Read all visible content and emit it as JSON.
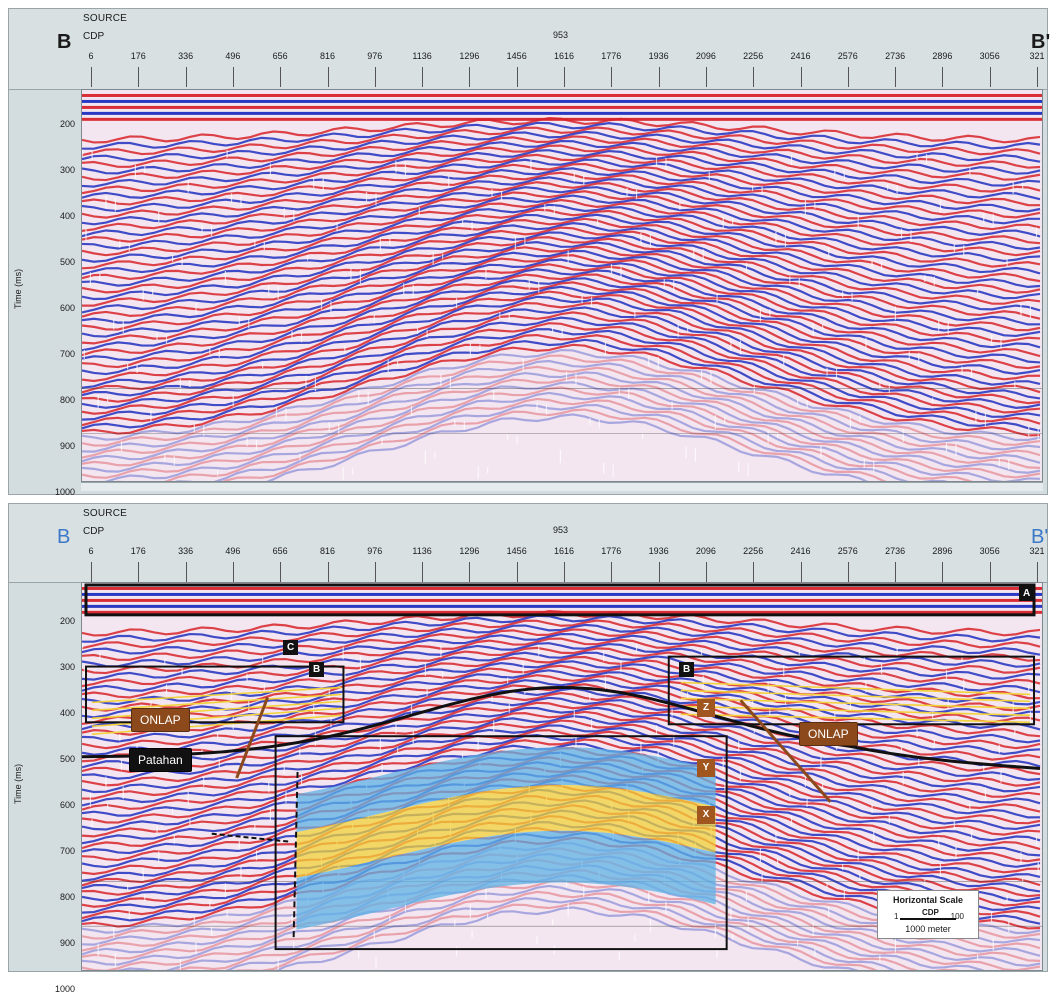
{
  "top_panel": {
    "source_label": "SOURCE",
    "cdp_label": "CDP",
    "source_value": "953",
    "endpoint_left": "B",
    "endpoint_right": "B'",
    "y_axis_label": "Time (ms)"
  },
  "bottom_panel": {
    "source_label": "SOURCE",
    "cdp_label": "CDP",
    "source_value": "953",
    "endpoint_left": "B",
    "endpoint_right": "B'",
    "y_axis_label": "Time (ms)",
    "box_labels": {
      "a": "A",
      "b_left": "B",
      "b_right": "B",
      "c": "C"
    },
    "callouts": {
      "onlap_left": "ONLAP",
      "onlap_right": "ONLAP",
      "fault": "Patahan"
    },
    "layer_tags": {
      "z": "Z",
      "y": "Y",
      "x": "X"
    },
    "scale": {
      "title": "Horizontal Scale",
      "start": "1",
      "unit": "CDP",
      "end": "100",
      "length": "1000 meter"
    }
  },
  "cdp_ticks": [
    "6",
    "176",
    "336",
    "496",
    "656",
    "816",
    "976",
    "1136",
    "1296",
    "1456",
    "1616",
    "1776",
    "1936",
    "2096",
    "2256",
    "2416",
    "2576",
    "2736",
    "2896",
    "3056",
    "321"
  ],
  "time_ticks": [
    "200",
    "300",
    "400",
    "500",
    "600",
    "700",
    "800",
    "900",
    "1000"
  ],
  "colors": {
    "peak": "#d8232a",
    "trough": "#1e2fc0",
    "background": "#f3e6f0",
    "highlight_yellow": "#f2d23a",
    "highlight_blue": "#5fb2e6",
    "callout_brown": "#8c4a1c"
  }
}
